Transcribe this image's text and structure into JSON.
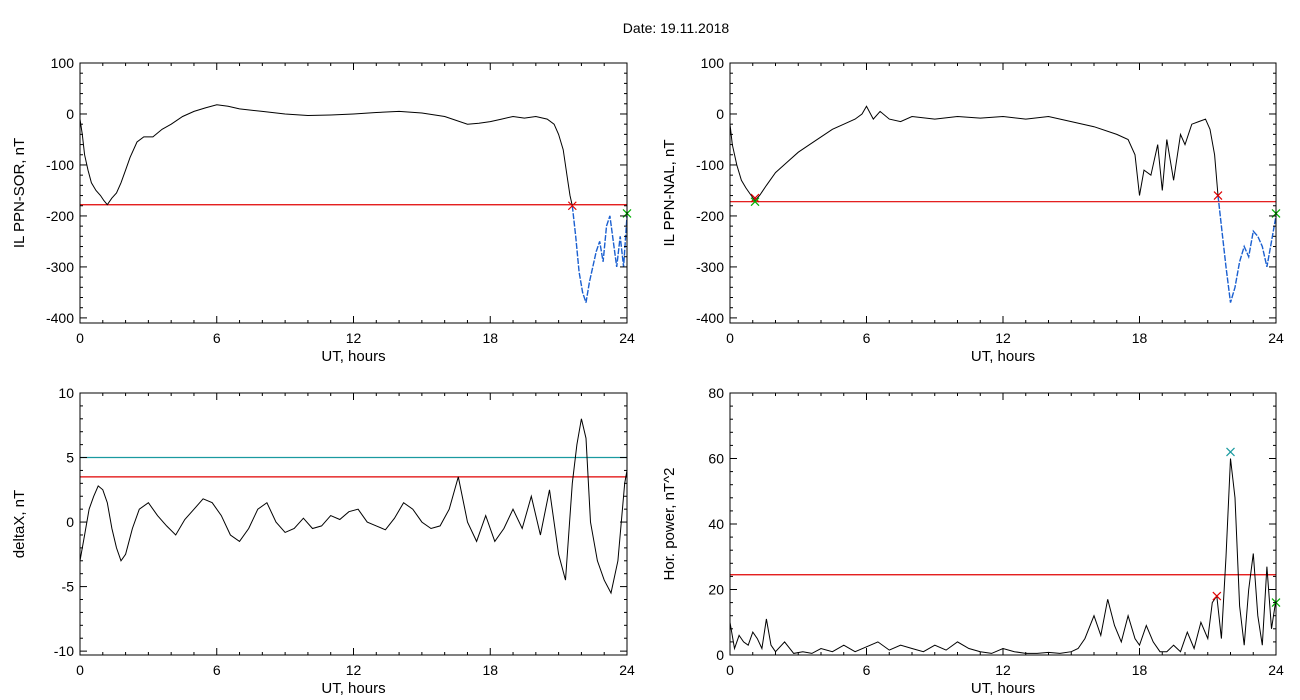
{
  "figure": {
    "title": "Date:  19.11.2018"
  },
  "chart_data": [
    {
      "id": "ppn-sor",
      "type": "line",
      "xlabel": "UT, hours",
      "ylabel": "IL PPN-SOR, nT",
      "xlim": [
        0,
        24
      ],
      "ylim": [
        -410,
        100
      ],
      "xticks": [
        0,
        6,
        12,
        18,
        24
      ],
      "xtick_labels": [
        "0",
        "6",
        "12",
        "18",
        "24"
      ],
      "yticks": [
        -400,
        -300,
        -200,
        -100,
        0,
        100
      ],
      "ytick_labels": [
        "-400",
        "-300",
        "-200",
        "-100",
        "0",
        "100"
      ],
      "threshold": {
        "value": -178,
        "color": "#e00000"
      },
      "series": [
        {
          "role": "main",
          "color": "#000000",
          "x": [
            0,
            0.1,
            0.2,
            0.35,
            0.5,
            0.7,
            0.9,
            1.05,
            1.2,
            1.4,
            1.6,
            1.8,
            2.0,
            2.2,
            2.5,
            2.8,
            3.2,
            3.6,
            4.0,
            4.5,
            5.0,
            5.5,
            6.0,
            6.5,
            7.0,
            8.0,
            9.0,
            10.0,
            11.0,
            12.0,
            13.0,
            14.0,
            15.0,
            16.0,
            17.0,
            17.5,
            18.0,
            18.5,
            19.0,
            19.5,
            20.0,
            20.5,
            20.8,
            21.0,
            21.2,
            21.4,
            21.5,
            21.6
          ],
          "y": [
            -10,
            -40,
            -80,
            -110,
            -135,
            -150,
            -160,
            -170,
            -178,
            -165,
            -155,
            -135,
            -110,
            -85,
            -55,
            -45,
            -45,
            -30,
            -20,
            -5,
            5,
            12,
            18,
            15,
            10,
            5,
            0,
            -3,
            -2,
            0,
            3,
            5,
            2,
            -5,
            -20,
            -18,
            -15,
            -10,
            -5,
            -8,
            -5,
            -10,
            -20,
            -40,
            -70,
            -130,
            -160,
            -180
          ]
        },
        {
          "role": "highlight",
          "color": "#1a5fd0",
          "x": [
            21.6,
            21.75,
            21.9,
            22.05,
            22.2,
            22.35,
            22.5,
            22.65,
            22.8,
            22.95,
            23.1,
            23.25,
            23.4,
            23.55,
            23.7,
            23.85,
            24.0
          ],
          "y": [
            -180,
            -240,
            -310,
            -350,
            -370,
            -330,
            -300,
            -270,
            -250,
            -290,
            -220,
            -200,
            -250,
            -300,
            -240,
            -300,
            -200
          ]
        }
      ],
      "markers": [
        {
          "x": 21.6,
          "y": -180,
          "color": "#e00000",
          "symbol": "x"
        },
        {
          "x": 24.0,
          "y": -195,
          "color": "#00b000",
          "symbol": "x"
        }
      ]
    },
    {
      "id": "ppn-nal",
      "type": "line",
      "xlabel": "UT, hours",
      "ylabel": "IL PPN-NAL, nT",
      "xlim": [
        0,
        24
      ],
      "ylim": [
        -410,
        100
      ],
      "xticks": [
        0,
        6,
        12,
        18,
        24
      ],
      "xtick_labels": [
        "0",
        "6",
        "12",
        "18",
        "24"
      ],
      "yticks": [
        -400,
        -300,
        -200,
        -100,
        0,
        100
      ],
      "ytick_labels": [
        "-400",
        "-300",
        "-200",
        "-100",
        "0",
        "100"
      ],
      "threshold": {
        "value": -172,
        "color": "#e00000"
      },
      "series": [
        {
          "role": "main",
          "color": "#000000",
          "x": [
            0,
            0.1,
            0.3,
            0.5,
            0.7,
            0.9,
            1.1,
            1.3,
            1.6,
            2.0,
            2.5,
            3.0,
            3.5,
            4.0,
            4.5,
            5.0,
            5.5,
            5.8,
            6.0,
            6.3,
            6.6,
            7.0,
            7.5,
            8.0,
            9.0,
            10.0,
            11.0,
            12.0,
            13.0,
            14.0,
            15.0,
            16.0,
            17.0,
            17.5,
            17.8,
            18.0,
            18.2,
            18.5,
            18.8,
            19.0,
            19.2,
            19.5,
            19.8,
            20.0,
            20.3,
            20.6,
            20.9,
            21.1,
            21.3,
            21.45
          ],
          "y": [
            -20,
            -60,
            -100,
            -130,
            -145,
            -158,
            -170,
            -160,
            -140,
            -115,
            -95,
            -75,
            -60,
            -45,
            -30,
            -20,
            -10,
            0,
            15,
            -10,
            5,
            -10,
            -15,
            -5,
            -10,
            -5,
            -8,
            -5,
            -10,
            -5,
            -15,
            -25,
            -40,
            -50,
            -80,
            -160,
            -110,
            -120,
            -60,
            -150,
            -50,
            -130,
            -40,
            -60,
            -20,
            -15,
            -10,
            -30,
            -80,
            -160
          ]
        },
        {
          "role": "highlight",
          "color": "#1a5fd0",
          "x": [
            21.45,
            21.6,
            21.8,
            22.0,
            22.2,
            22.4,
            22.6,
            22.8,
            23.0,
            23.2,
            23.4,
            23.6,
            23.8,
            24.0
          ],
          "y": [
            -160,
            -220,
            -300,
            -370,
            -340,
            -290,
            -260,
            -280,
            -230,
            -240,
            -260,
            -300,
            -250,
            -200
          ]
        }
      ],
      "markers": [
        {
          "x": 1.1,
          "y": -165,
          "color": "#e00000",
          "symbol": "x"
        },
        {
          "x": 1.1,
          "y": -172,
          "color": "#00b000",
          "symbol": "x"
        },
        {
          "x": 21.45,
          "y": -160,
          "color": "#e00000",
          "symbol": "x"
        },
        {
          "x": 24.0,
          "y": -195,
          "color": "#00b000",
          "symbol": "x"
        }
      ]
    },
    {
      "id": "deltax",
      "type": "line",
      "xlabel": "UT, hours",
      "ylabel": "deltaX, nT",
      "xlim": [
        0,
        24
      ],
      "ylim": [
        -10.3,
        10
      ],
      "xticks": [
        0,
        6,
        12,
        18,
        24
      ],
      "xtick_labels": [
        "0",
        "6",
        "12",
        "18",
        "24"
      ],
      "yticks": [
        -10,
        -5,
        0,
        5,
        10
      ],
      "ytick_labels": [
        "-10",
        "-5",
        "0",
        "5",
        "10"
      ],
      "thresholds": [
        {
          "value": 5.0,
          "color": "#1a9aa0"
        },
        {
          "value": 3.5,
          "color": "#e00000"
        }
      ],
      "series": [
        {
          "role": "main",
          "color": "#000000",
          "x": [
            0,
            0.2,
            0.4,
            0.6,
            0.8,
            1.0,
            1.2,
            1.4,
            1.6,
            1.8,
            2.0,
            2.3,
            2.6,
            3.0,
            3.4,
            3.8,
            4.2,
            4.6,
            5.0,
            5.4,
            5.8,
            6.2,
            6.6,
            7.0,
            7.4,
            7.8,
            8.2,
            8.6,
            9.0,
            9.4,
            9.8,
            10.2,
            10.6,
            11.0,
            11.4,
            11.8,
            12.2,
            12.6,
            13.0,
            13.4,
            13.8,
            14.2,
            14.6,
            15.0,
            15.4,
            15.8,
            16.2,
            16.6,
            17.0,
            17.4,
            17.8,
            18.2,
            18.6,
            19.0,
            19.4,
            19.8,
            20.2,
            20.6,
            21.0,
            21.3,
            21.6,
            21.8,
            22.0,
            22.2,
            22.4,
            22.7,
            23.0,
            23.3,
            23.6,
            23.9,
            24.0
          ],
          "y": [
            -3,
            -1,
            1,
            2,
            2.8,
            2.5,
            1.5,
            -0.5,
            -2,
            -3,
            -2.5,
            -0.5,
            1,
            1.5,
            0.5,
            -0.3,
            -1,
            0.2,
            1,
            1.8,
            1.5,
            0.5,
            -1,
            -1.5,
            -0.5,
            1,
            1.5,
            0,
            -0.8,
            -0.5,
            0.3,
            -0.5,
            -0.3,
            0.5,
            0.2,
            0.8,
            1.0,
            0,
            -0.3,
            -0.6,
            0.3,
            1.5,
            1.0,
            0,
            -0.5,
            -0.3,
            1.0,
            3.5,
            0,
            -1.5,
            0.5,
            -1.5,
            -0.5,
            1.0,
            -0.5,
            2.0,
            -1.0,
            2.5,
            -2.5,
            -4.5,
            3.0,
            6.0,
            8.0,
            6.5,
            0,
            -3.0,
            -4.5,
            -5.5,
            -3.0,
            3.0,
            4.0
          ]
        }
      ],
      "markers": []
    },
    {
      "id": "hor-power",
      "type": "line",
      "xlabel": "UT, hours",
      "ylabel": "Hor. power, nT^2",
      "xlim": [
        0,
        24
      ],
      "ylim": [
        0,
        80
      ],
      "xticks": [
        0,
        6,
        12,
        18,
        24
      ],
      "xtick_labels": [
        "0",
        "6",
        "12",
        "18",
        "24"
      ],
      "yticks": [
        0,
        20,
        40,
        60,
        80
      ],
      "ytick_labels": [
        "0",
        "20",
        "40",
        "60",
        "80"
      ],
      "threshold": {
        "value": 24.5,
        "color": "#e00000"
      },
      "series": [
        {
          "role": "main",
          "color": "#000000",
          "x": [
            0,
            0.2,
            0.4,
            0.6,
            0.8,
            1.0,
            1.2,
            1.4,
            1.6,
            1.8,
            2.0,
            2.4,
            2.8,
            3.2,
            3.6,
            4.0,
            4.5,
            5.0,
            5.5,
            6.0,
            6.5,
            7.0,
            7.5,
            8.0,
            8.5,
            9.0,
            9.5,
            10.0,
            10.5,
            11.0,
            11.5,
            12.0,
            12.5,
            13.0,
            13.5,
            14.0,
            14.5,
            15.0,
            15.3,
            15.6,
            16.0,
            16.3,
            16.6,
            16.9,
            17.2,
            17.5,
            17.8,
            18.0,
            18.3,
            18.6,
            18.9,
            19.2,
            19.5,
            19.8,
            20.1,
            20.4,
            20.7,
            21.0,
            21.2,
            21.4,
            21.6,
            21.8,
            22.0,
            22.2,
            22.4,
            22.6,
            22.8,
            23.0,
            23.2,
            23.4,
            23.6,
            23.8,
            24.0
          ],
          "y": [
            10,
            2,
            6,
            4,
            3,
            7,
            5,
            2,
            11,
            3,
            1,
            4,
            0.5,
            1,
            0.5,
            2,
            1,
            3,
            1,
            2.5,
            4,
            1.5,
            3,
            2,
            1,
            3,
            1.5,
            4,
            2,
            1,
            0.5,
            2,
            1,
            0.5,
            0.5,
            0.8,
            0.5,
            1,
            2,
            5,
            12,
            6,
            17,
            9,
            4,
            12,
            5,
            3,
            9,
            4,
            1,
            1,
            3,
            1,
            7,
            2,
            10,
            5,
            16,
            18,
            5,
            30,
            60,
            48,
            15,
            3,
            20,
            31,
            12,
            3,
            27,
            8,
            17
          ]
        }
      ],
      "markers": [
        {
          "x": 21.4,
          "y": 18,
          "color": "#e00000",
          "symbol": "x"
        },
        {
          "x": 22.0,
          "y": 62,
          "color": "#1a9aa0",
          "symbol": "x"
        },
        {
          "x": 24.0,
          "y": 16,
          "color": "#00b000",
          "symbol": "x"
        }
      ]
    }
  ]
}
